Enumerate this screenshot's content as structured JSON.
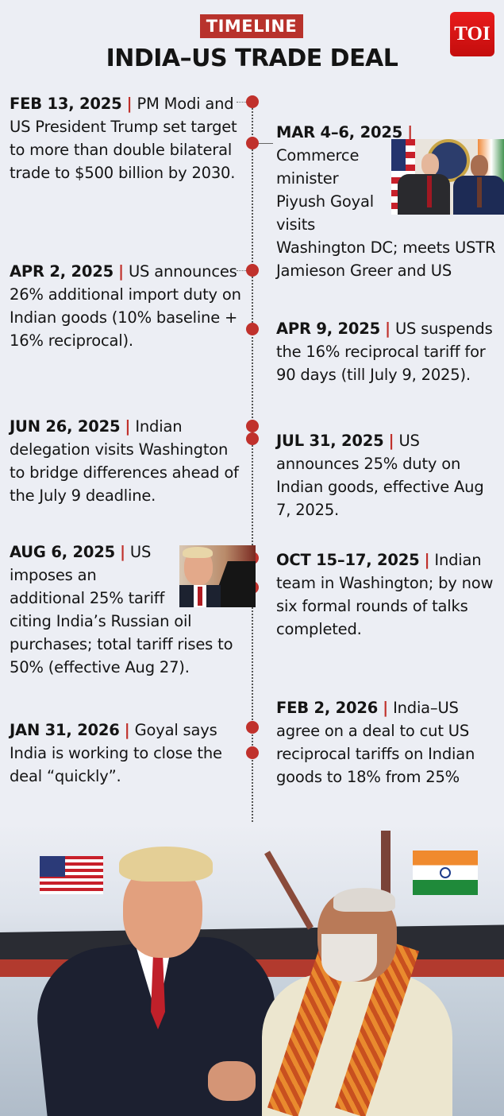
{
  "header": {
    "tag": "TIMELINE",
    "title": "INDIA–US TRADE DEAL",
    "logo": "TOI"
  },
  "colors": {
    "accent": "#b8322c",
    "background": "#eceef4",
    "logo": "#e01515"
  },
  "separator": "|",
  "left": [
    {
      "date": "FEB 13, 2025",
      "text": "PM Modi and US President Trump set target to more than double bilateral trade to $500 billion by 2030."
    },
    {
      "date": "APR 2, 2025",
      "text": "US announces 26% additional import duty on Indian goods (10% baseline + 16% reciprocal)."
    },
    {
      "date": "JUN 26, 2025",
      "text": "Indian delegation visits Washington to bridge differences ahead of the July 9 deadline."
    },
    {
      "date": "AUG 6, 2025",
      "text": "US imposes an additional 25% tariff citing India’s Russian oil purchases; total tariff rises to 50% (effective Aug 27)."
    },
    {
      "date": "JAN 31, 2026",
      "text": "Goyal says India is working to close the deal “quickly”."
    }
  ],
  "right": [
    {
      "date": "MAR 4–6, 2025",
      "text": "Commerce minister Piyush Goyal visits Washington DC; meets USTR Jamieson Greer and US"
    },
    {
      "date": "APR 9, 2025",
      "text": "US suspends the 16% reciprocal tariff for 90 days (till July 9, 2025)."
    },
    {
      "date": "JUL 31, 2025",
      "text": "US announces 25% duty on Indian goods, effective Aug 7, 2025."
    },
    {
      "date": "OCT 15–17, 2025",
      "text": "Indian team in Washington; by now six formal rounds of talks completed."
    },
    {
      "date": "FEB 2, 2026",
      "text": "India–US agree on a deal to cut US reciprocal tariffs on Indian goods to 18% from 25%"
    }
  ]
}
